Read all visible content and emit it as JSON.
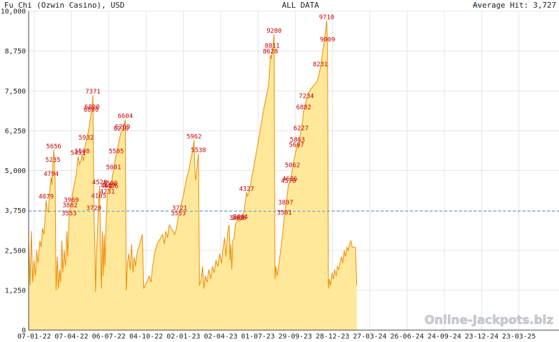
{
  "header": {
    "title": "Fu Chi (Ozwin Casino), USD",
    "range_label": "ALL DATA",
    "avg_label": "Average Hit: 3,727"
  },
  "watermark": "Online-Jackpots.biz",
  "colors": {
    "fill": "#ffe89a",
    "line": "#f08a00",
    "avg_line": "#4f95d8",
    "annotation": "#cc0000",
    "grid": "#e5e5e5"
  },
  "chart_data": {
    "type": "area",
    "title": "Fu Chi (Ozwin Casino), USD",
    "xlabel": "",
    "ylabel": "",
    "ylim": [
      0,
      10000
    ],
    "yticks": [
      0,
      1250,
      2500,
      3750,
      5000,
      6250,
      7500,
      8750,
      10000
    ],
    "ytick_labels": [
      "0",
      "1,250",
      "2,500",
      "3,750",
      "5,000",
      "6,250",
      "7,500",
      "8,750",
      "10,000"
    ],
    "xticks": [
      "07-01-22",
      "07-04-22",
      "06-07-22",
      "04-10-22",
      "02-01-23",
      "02-04-23",
      "01-07-23",
      "29-09-23",
      "28-12-23",
      "27-03-24",
      "26-06-24",
      "24-09-24",
      "23-12-24",
      "23-03-25"
    ],
    "xlim": [
      0,
      1180
    ],
    "grid": true,
    "average": 3727,
    "series": [
      {
        "values": [
          [
            0,
            2900
          ],
          [
            3,
            1400
          ],
          [
            6,
            3100
          ],
          [
            9,
            1500
          ],
          [
            12,
            2200
          ],
          [
            15,
            1700
          ],
          [
            18,
            2500
          ],
          [
            21,
            2100
          ],
          [
            25,
            2800
          ],
          [
            28,
            2600
          ],
          [
            31,
            3200
          ],
          [
            34,
            3000
          ],
          [
            37,
            3600
          ],
          [
            39,
            4079
          ],
          [
            41,
            3750
          ],
          [
            44,
            3700
          ],
          [
            47,
            4400
          ],
          [
            50,
            4794
          ],
          [
            52,
            4550
          ],
          [
            54,
            5235
          ],
          [
            56,
            5656
          ],
          [
            59,
            4700
          ],
          [
            61,
            1250
          ],
          [
            64,
            2300
          ],
          [
            66,
            1300
          ],
          [
            69,
            1900
          ],
          [
            71,
            1500
          ],
          [
            74,
            2800
          ],
          [
            76,
            1800
          ],
          [
            79,
            2500
          ],
          [
            82,
            2000
          ],
          [
            85,
            3100
          ],
          [
            87,
            2300
          ],
          [
            90,
            3553
          ],
          [
            92,
            3802
          ],
          [
            95,
            3969
          ],
          [
            98,
            4300
          ],
          [
            102,
            4600
          ],
          [
            106,
            4900
          ],
          [
            110,
            5451
          ],
          [
            113,
            5200
          ],
          [
            116,
            5300
          ],
          [
            119,
            5508
          ],
          [
            122,
            5300
          ],
          [
            125,
            5700
          ],
          [
            128,
            5932
          ],
          [
            131,
            6100
          ],
          [
            134,
            6300
          ],
          [
            137,
            6600
          ],
          [
            139,
            6800
          ],
          [
            141,
            6890
          ],
          [
            143,
            7371
          ],
          [
            145,
            3720
          ],
          [
            147,
            2900
          ],
          [
            149,
            1200
          ],
          [
            151,
            2400
          ],
          [
            153,
            3000
          ],
          [
            156,
            4105
          ],
          [
            158,
            4528
          ],
          [
            160,
            2500
          ],
          [
            162,
            1300
          ],
          [
            164,
            3100
          ],
          [
            166,
            1700
          ],
          [
            168,
            3000
          ],
          [
            170,
            2000
          ],
          [
            172,
            3200
          ],
          [
            175,
            4231
          ],
          [
            177,
            4417
          ],
          [
            179,
            4450
          ],
          [
            181,
            4500
          ],
          [
            183,
            4406
          ],
          [
            186,
            4800
          ],
          [
            189,
            5001
          ],
          [
            192,
            5300
          ],
          [
            195,
            5505
          ],
          [
            198,
            5700
          ],
          [
            202,
            6000
          ],
          [
            206,
            6210
          ],
          [
            209,
            6269
          ],
          [
            212,
            6400
          ],
          [
            215,
            6604
          ],
          [
            217,
            1250
          ],
          [
            220,
            2100
          ],
          [
            223,
            2400
          ],
          [
            226,
            1900
          ],
          [
            229,
            2700
          ],
          [
            232,
            1800
          ],
          [
            235,
            2300
          ],
          [
            238,
            2000
          ],
          [
            241,
            2400
          ],
          [
            245,
            2600
          ],
          [
            249,
            2800
          ],
          [
            253,
            3000
          ],
          [
            256,
            1300
          ],
          [
            259,
            1400
          ],
          [
            263,
            1500
          ],
          [
            268,
            1700
          ],
          [
            272,
            1500
          ],
          [
            276,
            2000
          ],
          [
            279,
            2300
          ],
          [
            282,
            2500
          ],
          [
            286,
            2700
          ],
          [
            290,
            2800
          ],
          [
            294,
            2900
          ],
          [
            298,
            3000
          ],
          [
            302,
            2700
          ],
          [
            305,
            3100
          ],
          [
            309,
            2900
          ],
          [
            313,
            3300
          ],
          [
            317,
            3200
          ],
          [
            321,
            3100
          ],
          [
            325,
            3000
          ],
          [
            329,
            3200
          ],
          [
            333,
            3553
          ],
          [
            336,
            3721
          ],
          [
            340,
            4000
          ],
          [
            344,
            4200
          ],
          [
            348,
            4500
          ],
          [
            352,
            4800
          ],
          [
            356,
            5000
          ],
          [
            360,
            5300
          ],
          [
            363,
            5500
          ],
          [
            366,
            5700
          ],
          [
            368,
            5962
          ],
          [
            370,
            4900
          ],
          [
            372,
            4700
          ],
          [
            375,
            5200
          ],
          [
            378,
            5538
          ],
          [
            380,
            1400
          ],
          [
            384,
            1600
          ],
          [
            387,
            2000
          ],
          [
            390,
            1300
          ],
          [
            393,
            1700
          ],
          [
            397,
            1500
          ],
          [
            401,
            1900
          ],
          [
            405,
            1600
          ],
          [
            409,
            2000
          ],
          [
            413,
            1800
          ],
          [
            417,
            2200
          ],
          [
            421,
            2000
          ],
          [
            425,
            2400
          ],
          [
            429,
            2100
          ],
          [
            433,
            2600
          ],
          [
            436,
            2900
          ],
          [
            439,
            2300
          ],
          [
            443,
            3100
          ],
          [
            446,
            3300
          ],
          [
            448,
            2200
          ],
          [
            450,
            2700
          ],
          [
            452,
            1900
          ],
          [
            454,
            2800
          ],
          [
            457,
            2900
          ],
          [
            460,
            3300
          ],
          [
            463,
            3409
          ],
          [
            465,
            3500
          ],
          [
            468,
            3416
          ],
          [
            471,
            3444
          ],
          [
            474,
            3500
          ],
          [
            477,
            3600
          ],
          [
            480,
            3800
          ],
          [
            483,
            4100
          ],
          [
            485,
            4327
          ],
          [
            487,
            4200
          ],
          [
            490,
            4300
          ],
          [
            494,
            4600
          ],
          [
            498,
            4900
          ],
          [
            502,
            5200
          ],
          [
            507,
            5600
          ],
          [
            512,
            6000
          ],
          [
            518,
            6500
          ],
          [
            524,
            7000
          ],
          [
            530,
            7400
          ],
          [
            534,
            7700
          ],
          [
            536,
            8200
          ],
          [
            538,
            8628
          ],
          [
            540,
            8500
          ],
          [
            542,
            8811
          ],
          [
            544,
            8900
          ],
          [
            546,
            9280
          ],
          [
            548,
            1600
          ],
          [
            550,
            2000
          ],
          [
            553,
            1700
          ],
          [
            557,
            2100
          ],
          [
            561,
            2500
          ],
          [
            565,
            3000
          ],
          [
            569,
            3581
          ],
          [
            572,
            3897
          ],
          [
            575,
            4200
          ],
          [
            578,
            4570
          ],
          [
            581,
            4636
          ],
          [
            584,
            4800
          ],
          [
            587,
            5062
          ],
          [
            590,
            5300
          ],
          [
            593,
            5500
          ],
          [
            596,
            5697
          ],
          [
            598,
            5863
          ],
          [
            600,
            5700
          ],
          [
            603,
            6000
          ],
          [
            606,
            6227
          ],
          [
            609,
            6500
          ],
          [
            612,
            6882
          ],
          [
            615,
            7000
          ],
          [
            618,
            7234
          ],
          [
            621,
            7400
          ],
          [
            625,
            7500
          ],
          [
            630,
            7600
          ],
          [
            636,
            7700
          ],
          [
            642,
            7800
          ],
          [
            646,
            8000
          ],
          [
            649,
            8231
          ],
          [
            652,
            8500
          ],
          [
            655,
            8800
          ],
          [
            658,
            9100
          ],
          [
            661,
            9400
          ],
          [
            663,
            9710
          ],
          [
            665,
            9009
          ],
          [
            667,
            1300
          ],
          [
            669,
            1600
          ],
          [
            672,
            1400
          ],
          [
            675,
            1800
          ],
          [
            678,
            1600
          ],
          [
            681,
            1900
          ],
          [
            684,
            1700
          ],
          [
            687,
            2000
          ],
          [
            690,
            1900
          ],
          [
            693,
            2100
          ],
          [
            696,
            2300
          ],
          [
            699,
            2100
          ],
          [
            702,
            2500
          ],
          [
            705,
            2300
          ],
          [
            708,
            2600
          ],
          [
            711,
            2500
          ],
          [
            714,
            2700
          ],
          [
            717,
            2800
          ],
          [
            720,
            2600
          ],
          [
            724,
            2600
          ],
          [
            727,
            2600
          ],
          [
            730,
            1400
          ]
        ]
      }
    ],
    "annotations": [
      {
        "x": 39,
        "y": 4079,
        "label": "4079"
      },
      {
        "x": 50,
        "y": 4794,
        "label": "4794"
      },
      {
        "x": 54,
        "y": 5235,
        "label": "5235"
      },
      {
        "x": 56,
        "y": 5656,
        "label": "5656"
      },
      {
        "x": 90,
        "y": 3553,
        "label": "3553"
      },
      {
        "x": 92,
        "y": 3802,
        "label": "3802"
      },
      {
        "x": 95,
        "y": 3969,
        "label": "3969"
      },
      {
        "x": 110,
        "y": 5451,
        "label": "5451"
      },
      {
        "x": 119,
        "y": 5508,
        "label": "5508"
      },
      {
        "x": 128,
        "y": 5932,
        "label": "5932"
      },
      {
        "x": 139,
        "y": 6800,
        "label": "6800"
      },
      {
        "x": 141,
        "y": 6890,
        "label": "6890"
      },
      {
        "x": 143,
        "y": 7371,
        "label": "7371"
      },
      {
        "x": 145,
        "y": 3720,
        "label": "3720"
      },
      {
        "x": 156,
        "y": 4105,
        "label": "4105"
      },
      {
        "x": 158,
        "y": 4528,
        "label": "4528"
      },
      {
        "x": 175,
        "y": 4231,
        "label": "4231"
      },
      {
        "x": 177,
        "y": 4417,
        "label": "4417"
      },
      {
        "x": 181,
        "y": 4500,
        "label": "4500"
      },
      {
        "x": 183,
        "y": 4406,
        "label": "4406"
      },
      {
        "x": 189,
        "y": 5001,
        "label": "5001"
      },
      {
        "x": 195,
        "y": 5505,
        "label": "5505"
      },
      {
        "x": 206,
        "y": 6210,
        "label": "6210"
      },
      {
        "x": 209,
        "y": 6269,
        "label": "6269"
      },
      {
        "x": 215,
        "y": 6604,
        "label": "6604"
      },
      {
        "x": 333,
        "y": 3553,
        "label": "3553"
      },
      {
        "x": 336,
        "y": 3721,
        "label": "3721"
      },
      {
        "x": 368,
        "y": 5962,
        "label": "5962"
      },
      {
        "x": 378,
        "y": 5538,
        "label": "5538"
      },
      {
        "x": 463,
        "y": 3409,
        "label": "3409"
      },
      {
        "x": 468,
        "y": 3416,
        "label": "3416"
      },
      {
        "x": 471,
        "y": 3444,
        "label": "3444"
      },
      {
        "x": 485,
        "y": 4327,
        "label": "4327"
      },
      {
        "x": 538,
        "y": 8628,
        "label": "8628"
      },
      {
        "x": 542,
        "y": 8811,
        "label": "8811"
      },
      {
        "x": 546,
        "y": 9280,
        "label": "9280"
      },
      {
        "x": 569,
        "y": 3581,
        "label": "3581"
      },
      {
        "x": 572,
        "y": 3897,
        "label": "3897"
      },
      {
        "x": 578,
        "y": 4570,
        "label": "4570"
      },
      {
        "x": 581,
        "y": 4636,
        "label": "4636"
      },
      {
        "x": 587,
        "y": 5062,
        "label": "5062"
      },
      {
        "x": 596,
        "y": 5697,
        "label": "5697"
      },
      {
        "x": 598,
        "y": 5863,
        "label": "5863"
      },
      {
        "x": 606,
        "y": 6227,
        "label": "6227"
      },
      {
        "x": 612,
        "y": 6882,
        "label": "6882"
      },
      {
        "x": 618,
        "y": 7234,
        "label": "7234"
      },
      {
        "x": 649,
        "y": 8231,
        "label": "8231"
      },
      {
        "x": 663,
        "y": 9710,
        "label": "9710"
      },
      {
        "x": 665,
        "y": 9009,
        "label": "9009"
      }
    ]
  }
}
